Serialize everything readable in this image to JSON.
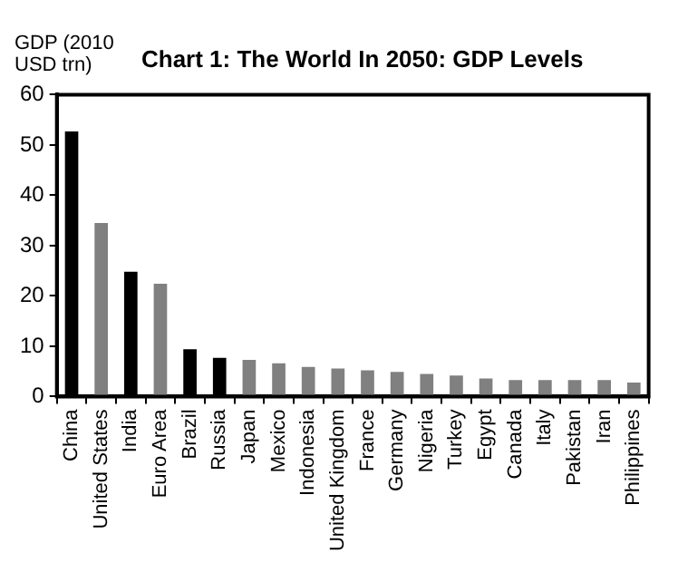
{
  "chart_data": {
    "type": "bar",
    "title": "Chart 1: The World In 2050: GDP Levels",
    "ylabel": "GDP (2010 USD trn)",
    "categories": [
      "China",
      "United States",
      "India",
      "Euro Area",
      "Brazil",
      "Russia",
      "Japan",
      "Mexico",
      "Indonesia",
      "United Kingdom",
      "France",
      "Germany",
      "Nigeria",
      "Turkey",
      "Egypt",
      "Canada",
      "Italy",
      "Pakistan",
      "Iran",
      "Philippines"
    ],
    "values": [
      52.7,
      34.5,
      24.8,
      22.4,
      9.4,
      7.7,
      7.3,
      6.6,
      5.9,
      5.6,
      5.2,
      4.9,
      4.5,
      4.2,
      3.6,
      3.3,
      3.3,
      3.3,
      3.3,
      2.8
    ],
    "colors": [
      "#000000",
      "#808080",
      "#000000",
      "#808080",
      "#000000",
      "#000000",
      "#808080",
      "#808080",
      "#808080",
      "#808080",
      "#808080",
      "#808080",
      "#808080",
      "#808080",
      "#808080",
      "#808080",
      "#808080",
      "#808080",
      "#808080",
      "#808080"
    ],
    "ylim": [
      0,
      60
    ],
    "yticks": [
      0,
      10,
      20,
      30,
      40,
      50,
      60
    ],
    "grid": false,
    "legend": false
  }
}
